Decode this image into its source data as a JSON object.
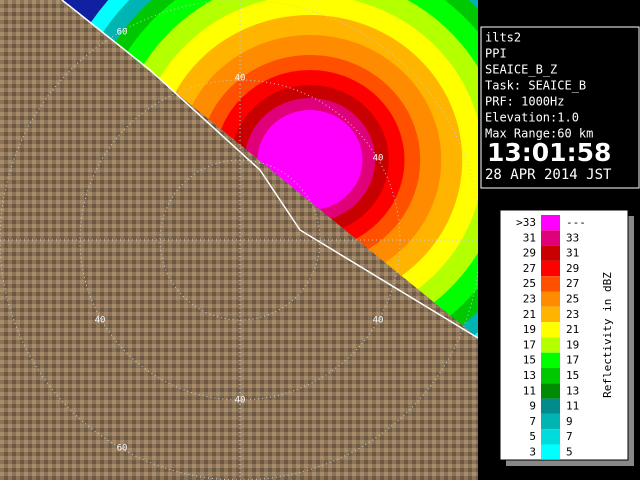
{
  "info": {
    "lines": [
      "ilts2",
      "PPI",
      "SEAICE_B_Z",
      "Task: SEAICE_B",
      "PRF: 1000Hz",
      "Elevation:1.0",
      "Max Range:60 km"
    ],
    "time": "13:01:58",
    "date": "28 APR 2014 JST"
  },
  "ring_labels": [
    "60",
    "40",
    "40",
    "40",
    "40",
    "40",
    "60"
  ],
  "legend": {
    "title": "Reflectivity in dBZ",
    "rows": [
      {
        "low": ">33",
        "high": "---",
        "color": "#ff00ff"
      },
      {
        "low": "31",
        "high": "33",
        "color": "#e0007a"
      },
      {
        "low": "29",
        "high": "31",
        "color": "#c80000"
      },
      {
        "low": "27",
        "high": "29",
        "color": "#ff0000"
      },
      {
        "low": "25",
        "high": "27",
        "color": "#ff5000"
      },
      {
        "low": "23",
        "high": "25",
        "color": "#ff8c00"
      },
      {
        "low": "21",
        "high": "23",
        "color": "#ffb400"
      },
      {
        "low": "19",
        "high": "21",
        "color": "#ffff00"
      },
      {
        "low": "17",
        "high": "19",
        "color": "#b4ff00"
      },
      {
        "low": "15",
        "high": "17",
        "color": "#00ff00"
      },
      {
        "low": "13",
        "high": "15",
        "color": "#00c800"
      },
      {
        "low": "11",
        "high": "13",
        "color": "#008c00"
      },
      {
        "low": "9",
        "high": "11",
        "color": "#008c8c"
      },
      {
        "low": "7",
        "high": "9",
        "color": "#00b4b4"
      },
      {
        "low": "5",
        "high": "7",
        "color": "#00dcdc"
      },
      {
        "low": "3",
        "high": "5",
        "color": "#00ffff"
      }
    ]
  }
}
